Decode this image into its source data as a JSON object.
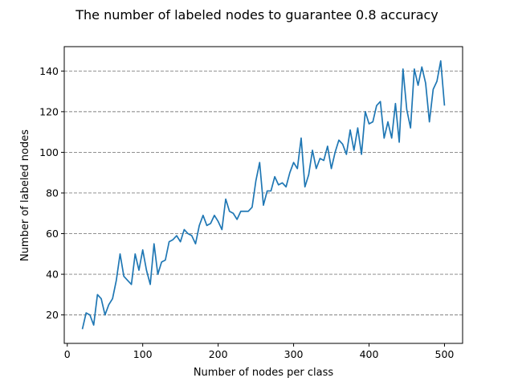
{
  "chart_data": {
    "type": "line",
    "title": "The number of labeled nodes to guarantee 0.8 accuracy",
    "xlabel": "Number of nodes per class",
    "ylabel": "Number of labeled nodes",
    "xlim": [
      -4,
      524
    ],
    "ylim": [
      6,
      152
    ],
    "xticks": [
      0,
      100,
      200,
      300,
      400,
      500
    ],
    "yticks": [
      20,
      40,
      60,
      80,
      100,
      120,
      140
    ],
    "grid": "y-dashed",
    "line_color": "#1f77b4",
    "series": [
      {
        "x": [
          20,
          25,
          30,
          35,
          40,
          45,
          50,
          55,
          60,
          65,
          70,
          75,
          80,
          85,
          90,
          95,
          100,
          105,
          110,
          115,
          120,
          125,
          130,
          135,
          140,
          145,
          150,
          155,
          160,
          165,
          170,
          175,
          180,
          185,
          190,
          195,
          200,
          205,
          210,
          215,
          220,
          225,
          230,
          235,
          240,
          245,
          250,
          255,
          260,
          265,
          270,
          275,
          280,
          285,
          290,
          295,
          300,
          305,
          310,
          315,
          320,
          325,
          330,
          335,
          340,
          345,
          350,
          355,
          360,
          365,
          370,
          375,
          380,
          385,
          390,
          395,
          400,
          405,
          410,
          415,
          420,
          425,
          430,
          435,
          440,
          445,
          450,
          455,
          460,
          465,
          470,
          475,
          480,
          485,
          490,
          495,
          500
        ],
        "y": [
          13,
          21,
          20,
          15,
          30,
          28,
          20,
          25,
          28,
          37,
          50,
          39,
          37,
          35,
          50,
          42,
          52,
          42,
          35,
          55,
          40,
          46,
          47,
          56,
          57,
          59,
          56,
          62,
          60,
          59,
          55,
          64,
          69,
          64,
          65,
          69,
          66,
          62,
          77,
          71,
          70,
          67,
          71,
          71,
          71,
          73,
          86,
          95,
          74,
          81,
          81,
          88,
          84,
          85,
          83,
          90,
          95,
          92,
          107,
          83,
          89,
          101,
          92,
          97,
          96,
          103,
          92,
          100,
          106,
          104,
          99,
          111,
          101,
          112,
          99,
          120,
          114,
          115,
          123,
          125,
          107,
          115,
          107,
          124,
          105,
          141,
          121,
          112,
          141,
          133,
          142,
          134,
          115,
          131,
          135,
          145,
          123
        ]
      }
    ]
  }
}
